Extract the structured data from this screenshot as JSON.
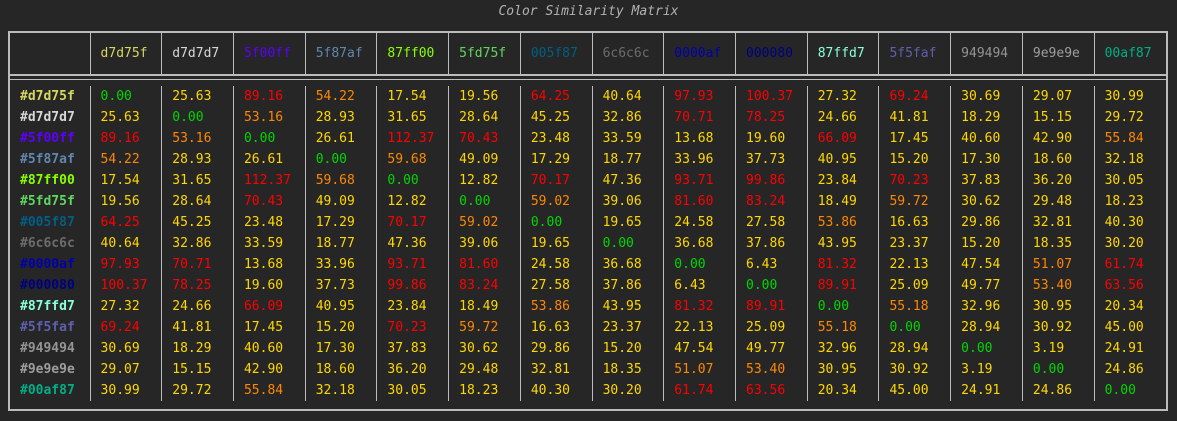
{
  "title": "Color Similarity Matrix",
  "colors": [
    "d7d75f",
    "d7d7d7",
    "5f00ff",
    "5f87af",
    "87ff00",
    "5fd75f",
    "005f87",
    "6c6c6c",
    "0000af",
    "000080",
    "87ffd7",
    "5f5faf",
    "949494",
    "9e9e9e",
    "00af87"
  ],
  "row_labels": [
    "#d7d75f",
    "#d7d7d7",
    "#5f00ff",
    "#5f87af",
    "#87ff00",
    "#5fd75f",
    "#005f87",
    "#6c6c6c",
    "#0000af",
    "#000080",
    "#87ffd7",
    "#5f5faf",
    "#949494",
    "#9e9e9e",
    "#00af87"
  ],
  "value_colors": {
    "good": "#00d700",
    "near": "#ffd700",
    "mid": "#ff8700",
    "far": "#ff0000"
  },
  "matrix": [
    [
      "0.00",
      "25.63",
      "89.16",
      "54.22",
      "17.54",
      "19.56",
      "64.25",
      "40.64",
      "97.93",
      "100.37",
      "27.32",
      "69.24",
      "30.69",
      "29.07",
      "30.99"
    ],
    [
      "25.63",
      "0.00",
      "53.16",
      "28.93",
      "31.65",
      "28.64",
      "45.25",
      "32.86",
      "70.71",
      "78.25",
      "24.66",
      "41.81",
      "18.29",
      "15.15",
      "29.72"
    ],
    [
      "89.16",
      "53.16",
      "0.00",
      "26.61",
      "112.37",
      "70.43",
      "23.48",
      "33.59",
      "13.68",
      "19.60",
      "66.09",
      "17.45",
      "40.60",
      "42.90",
      "55.84"
    ],
    [
      "54.22",
      "28.93",
      "26.61",
      "0.00",
      "59.68",
      "49.09",
      "17.29",
      "18.77",
      "33.96",
      "37.73",
      "40.95",
      "15.20",
      "17.30",
      "18.60",
      "32.18"
    ],
    [
      "17.54",
      "31.65",
      "112.37",
      "59.68",
      "0.00",
      "12.82",
      "70.17",
      "47.36",
      "93.71",
      "99.86",
      "23.84",
      "70.23",
      "37.83",
      "36.20",
      "30.05"
    ],
    [
      "19.56",
      "28.64",
      "70.43",
      "49.09",
      "12.82",
      "0.00",
      "59.02",
      "39.06",
      "81.60",
      "83.24",
      "18.49",
      "59.72",
      "30.62",
      "29.48",
      "18.23"
    ],
    [
      "64.25",
      "45.25",
      "23.48",
      "17.29",
      "70.17",
      "59.02",
      "0.00",
      "19.65",
      "24.58",
      "27.58",
      "53.86",
      "16.63",
      "29.86",
      "32.81",
      "40.30"
    ],
    [
      "40.64",
      "32.86",
      "33.59",
      "18.77",
      "47.36",
      "39.06",
      "19.65",
      "0.00",
      "36.68",
      "37.86",
      "43.95",
      "23.37",
      "15.20",
      "18.35",
      "30.20"
    ],
    [
      "97.93",
      "70.71",
      "13.68",
      "33.96",
      "93.71",
      "81.60",
      "24.58",
      "36.68",
      "0.00",
      "6.43",
      "81.32",
      "22.13",
      "47.54",
      "51.07",
      "61.74"
    ],
    [
      "100.37",
      "78.25",
      "19.60",
      "37.73",
      "99.86",
      "83.24",
      "27.58",
      "37.86",
      "6.43",
      "0.00",
      "89.91",
      "25.09",
      "49.77",
      "53.40",
      "63.56"
    ],
    [
      "27.32",
      "24.66",
      "66.09",
      "40.95",
      "23.84",
      "18.49",
      "53.86",
      "43.95",
      "81.32",
      "89.91",
      "0.00",
      "55.18",
      "32.96",
      "30.95",
      "20.34"
    ],
    [
      "69.24",
      "41.81",
      "17.45",
      "15.20",
      "70.23",
      "59.72",
      "16.63",
      "23.37",
      "22.13",
      "25.09",
      "55.18",
      "0.00",
      "28.94",
      "30.92",
      "45.00"
    ],
    [
      "30.69",
      "18.29",
      "40.60",
      "17.30",
      "37.83",
      "30.62",
      "29.86",
      "15.20",
      "47.54",
      "49.77",
      "32.96",
      "28.94",
      "0.00",
      "3.19",
      "24.91"
    ],
    [
      "29.07",
      "15.15",
      "42.90",
      "18.60",
      "36.20",
      "29.48",
      "32.81",
      "18.35",
      "51.07",
      "53.40",
      "30.95",
      "30.92",
      "3.19",
      "0.00",
      "24.86"
    ],
    [
      "30.99",
      "29.72",
      "55.84",
      "32.18",
      "30.05",
      "18.23",
      "40.30",
      "30.20",
      "61.74",
      "63.56",
      "20.34",
      "45.00",
      "24.91",
      "24.86",
      "0.00"
    ]
  ]
}
